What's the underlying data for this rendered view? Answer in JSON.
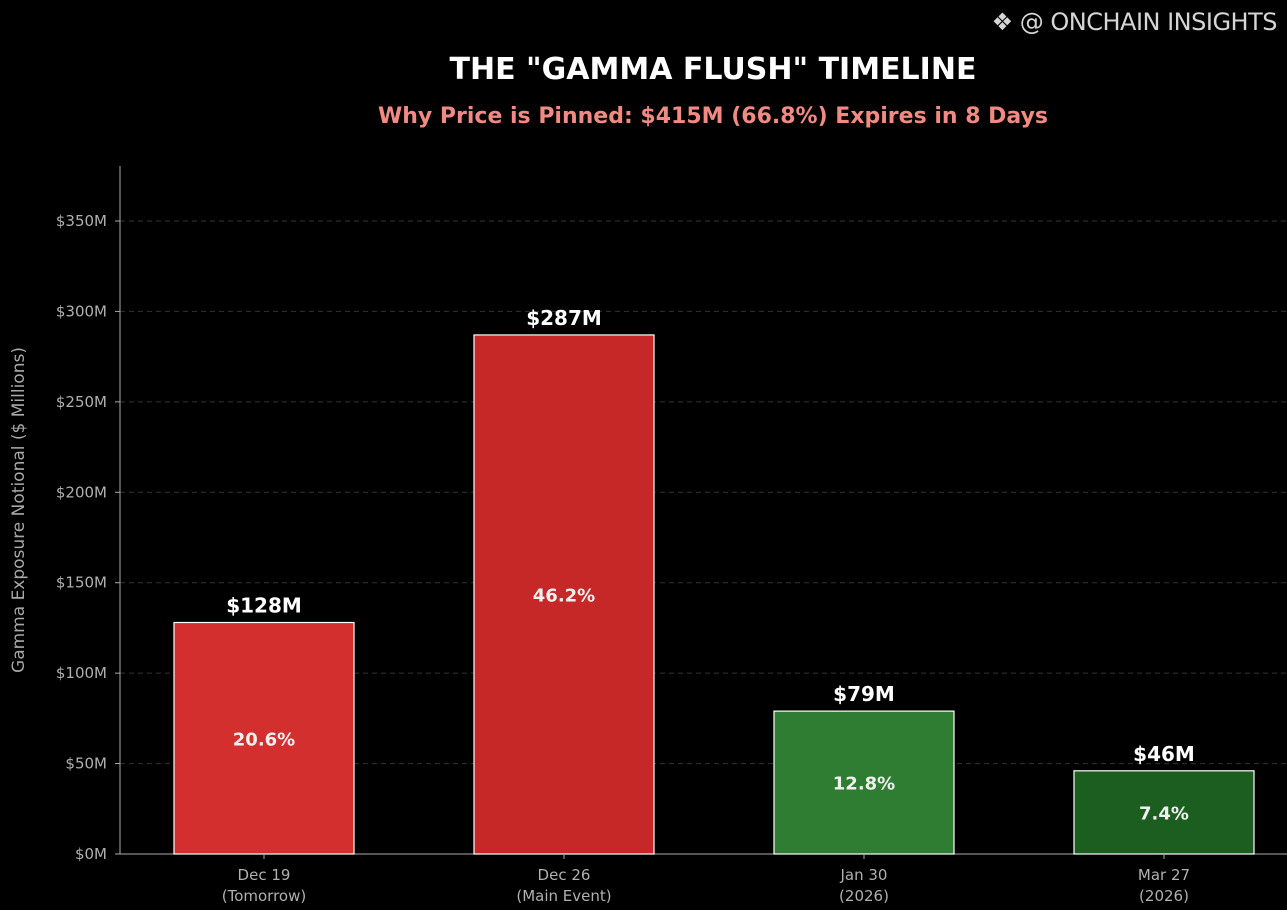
{
  "chart_data": {
    "type": "bar",
    "title": "THE \"GAMMA FLUSH\" TIMELINE",
    "subtitle": "Why Price is Pinned: $415M (66.8%) Expires in 8 Days",
    "ylabel": "Gamma Exposure Notional ($ Millions)",
    "xlabel": "",
    "ylim": [
      0,
      380
    ],
    "yticks": [
      0,
      50,
      100,
      150,
      200,
      250,
      300,
      350
    ],
    "ytick_labels": [
      "$0M",
      "$50M",
      "$100M",
      "$150M",
      "$200M",
      "$250M",
      "$300M",
      "$350M"
    ],
    "grid": "horizontal dashed",
    "categories": [
      [
        "Dec 19",
        "(Tomorrow)"
      ],
      [
        "Dec 26",
        "(Main Event)"
      ],
      [
        "Jan 30",
        "(2026)"
      ],
      [
        "Mar 27",
        "(2026)"
      ]
    ],
    "values": [
      128,
      287,
      79,
      46
    ],
    "value_labels": [
      "$128M",
      "$287M",
      "$79M",
      "$46M"
    ],
    "percent_labels": [
      "20.6%",
      "46.2%",
      "12.8%",
      "7.4%"
    ],
    "colors": [
      "#d32f2f",
      "#c62828",
      "#2e7d32",
      "#1b5e20"
    ]
  },
  "watermark": "@ ONCHAIN INSIGHTS"
}
